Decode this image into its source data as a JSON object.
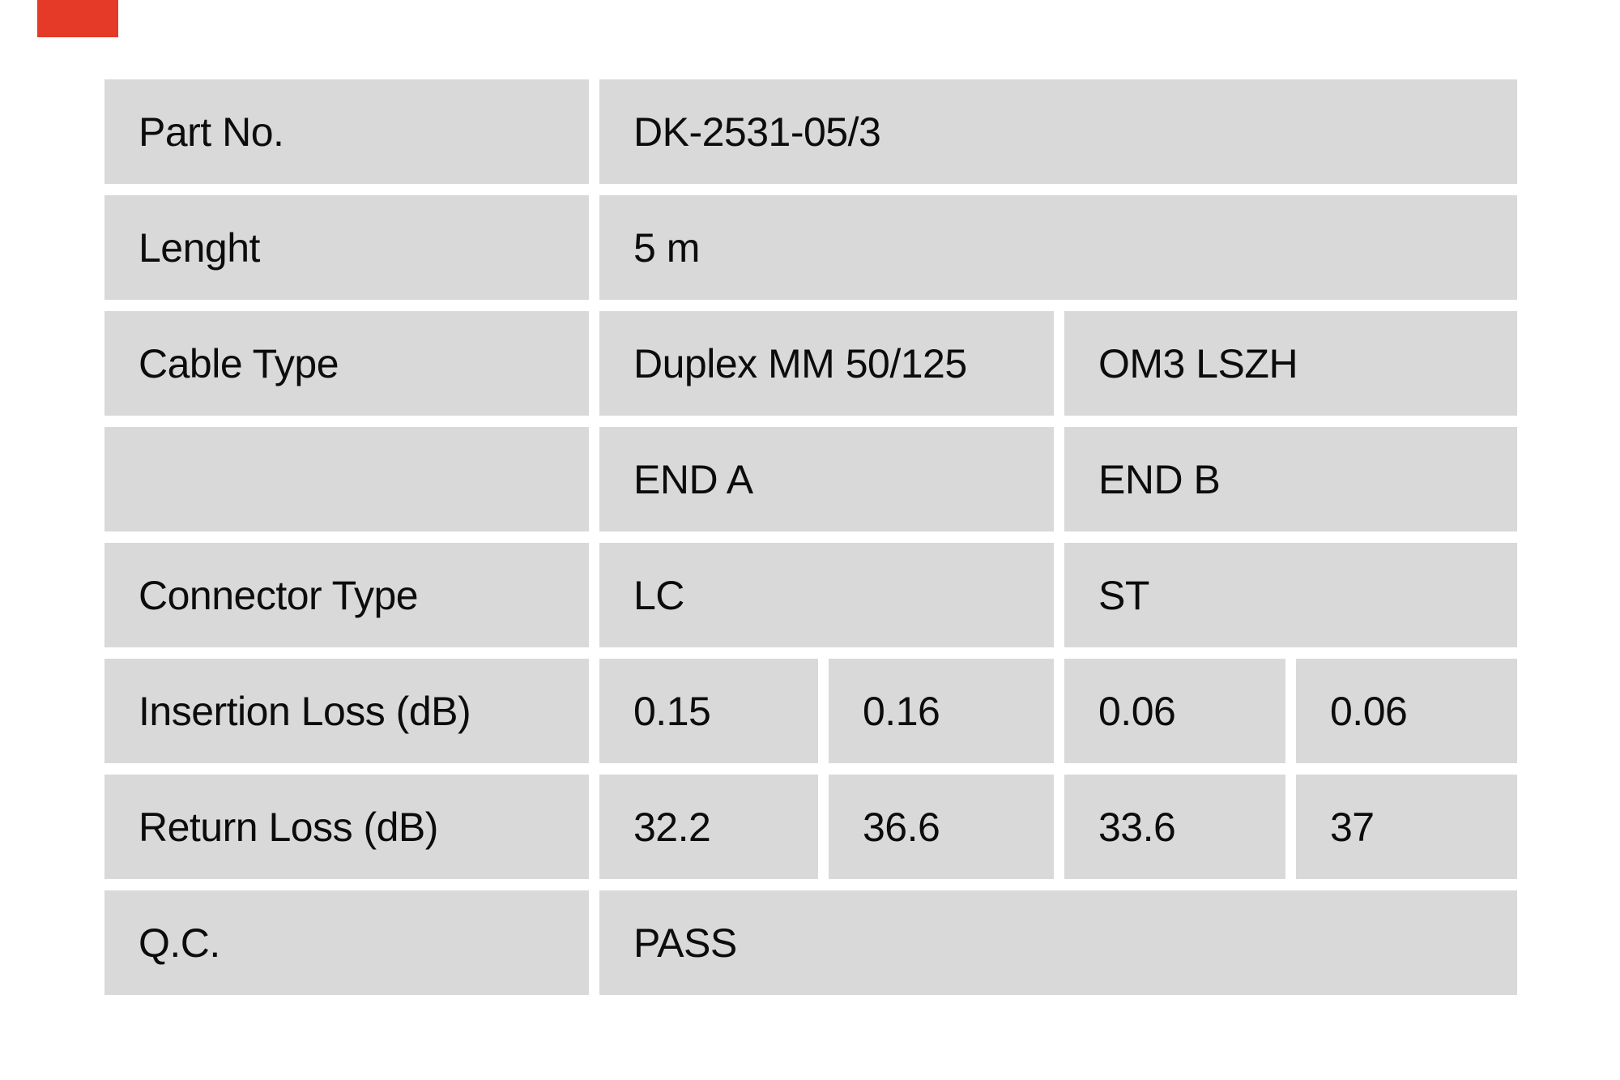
{
  "page": {
    "background": "#ffffff"
  },
  "red_marker": {
    "color": "#e53a28"
  },
  "table": {
    "cell_bg": "#d9d9d9",
    "text_color": "#0c0c0c",
    "rows": [
      {
        "label": "Part No.",
        "type": "full",
        "value": "DK-2531-05/3"
      },
      {
        "label": "Lenght",
        "type": "full",
        "value": "5 m"
      },
      {
        "label": "Cable Type",
        "type": "split",
        "value_a": "Duplex MM 50/125",
        "value_b": "OM3 LSZH"
      },
      {
        "label": "",
        "type": "split",
        "value_a": "END A",
        "value_b": "END B"
      },
      {
        "label": "Connector Type",
        "type": "split",
        "value_a": "LC",
        "value_b": "ST"
      },
      {
        "label": "Insertion Loss (dB)",
        "type": "quad",
        "values": [
          "0.15",
          "0.16",
          "0.06",
          "0.06"
        ]
      },
      {
        "label": "Return Loss (dB)",
        "type": "quad",
        "values": [
          "32.2",
          "36.6",
          "33.6",
          "37"
        ]
      },
      {
        "label": "Q.C.",
        "type": "full",
        "value": "PASS"
      }
    ]
  }
}
